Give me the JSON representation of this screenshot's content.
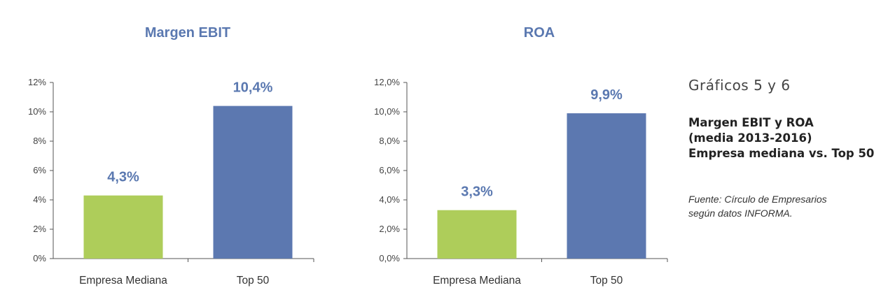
{
  "chart_data": [
    {
      "type": "bar",
      "title": "Margen EBIT",
      "categories": [
        "Empresa Mediana",
        "Top 50"
      ],
      "values": [
        4.3,
        10.4
      ],
      "value_labels": [
        "4,3%",
        "10,4%"
      ],
      "colors": [
        "#aecd5a",
        "#5c78b0"
      ],
      "yticks": [
        "0%",
        "2%",
        "4%",
        "6%",
        "8%",
        "10%",
        "12%"
      ],
      "ylim": [
        0,
        12
      ],
      "xlabel": "",
      "ylabel": "",
      "grid": false
    },
    {
      "type": "bar",
      "title": "ROA",
      "categories": [
        "Empresa Mediana",
        "Top 50"
      ],
      "values": [
        3.3,
        9.9
      ],
      "value_labels": [
        "3,3%",
        "9,9%"
      ],
      "colors": [
        "#aecd5a",
        "#5c78b0"
      ],
      "yticks": [
        "0,0%",
        "2,0%",
        "4,0%",
        "6,0%",
        "8,0%",
        "10,0%",
        "12,0%"
      ],
      "ylim": [
        0,
        12
      ],
      "xlabel": "",
      "ylabel": "",
      "grid": false
    }
  ],
  "caption": {
    "number": "Gráficos 5 y 6",
    "title_lines": [
      "Margen EBIT y ROA",
      "(media 2013-2016)",
      "Empresa mediana vs. Top 50"
    ],
    "source_lines": [
      "Fuente: Círculo de Empresarios",
      "según datos INFORMA."
    ]
  }
}
